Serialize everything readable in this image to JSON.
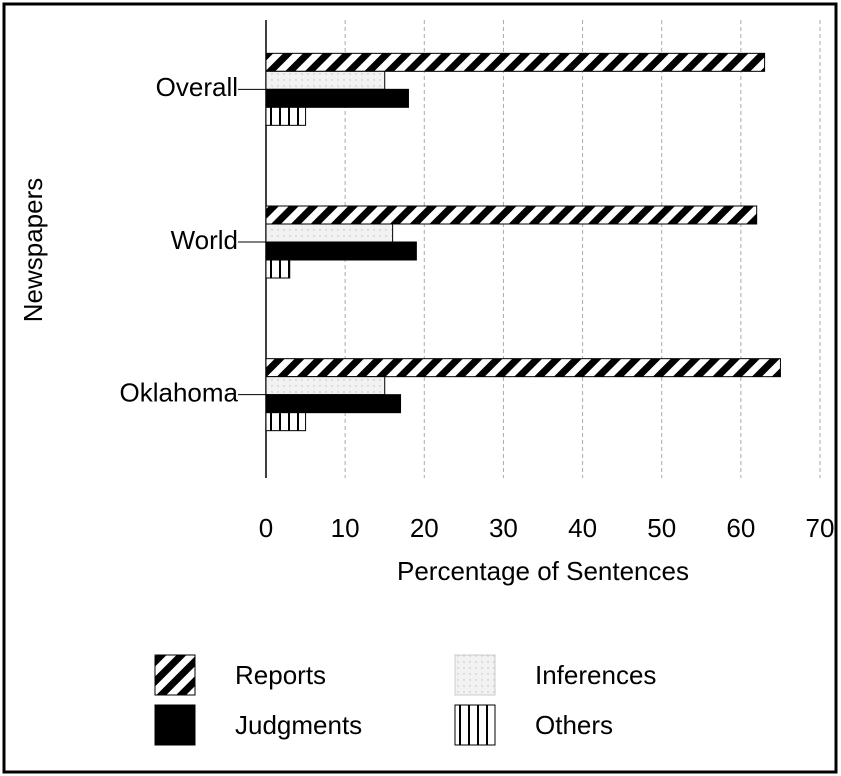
{
  "chart_data": {
    "type": "hbar",
    "xlabel": "Percentage of Sentences",
    "ylabel": "Newspapers",
    "categories": [
      "Overall",
      "World",
      "Oklahoma"
    ],
    "series": [
      {
        "name": "Reports",
        "color": "#000000",
        "pattern": "diagonal",
        "values": [
          63,
          62,
          65
        ]
      },
      {
        "name": "Inferences",
        "color": "#f2f2f2",
        "pattern": "dots",
        "values": [
          15,
          16,
          15
        ]
      },
      {
        "name": "Judgments",
        "color": "#000000",
        "pattern": "solid",
        "values": [
          18,
          19,
          17
        ]
      },
      {
        "name": "Others",
        "color": "#000000",
        "pattern": "vertical",
        "values": [
          5,
          3,
          5
        ]
      }
    ],
    "xlim": [
      0,
      70
    ],
    "xticks": [
      0,
      10,
      20,
      30,
      40,
      50,
      60,
      70
    ],
    "grid": true,
    "legend": "bottom"
  }
}
